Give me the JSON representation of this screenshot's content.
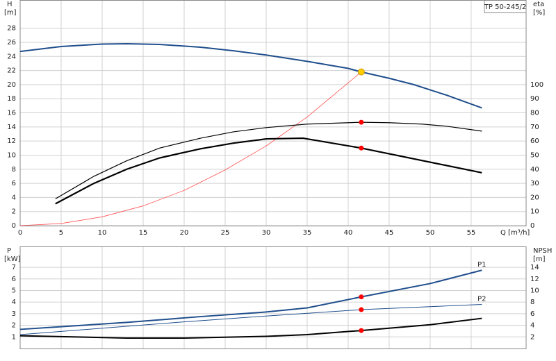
{
  "chart_data": [
    {
      "type": "line",
      "label": "TP 50-245/2",
      "y_label": "H",
      "y_unit": "[m]",
      "y2_label": "eta",
      "y2_unit": "[%]",
      "x_label": "Q [m³/h]",
      "xlim": [
        0,
        61.7
      ],
      "xticks": [
        0,
        5,
        10,
        15,
        20,
        25,
        30,
        35,
        40,
        45,
        50,
        55
      ],
      "ylim": [
        0,
        32
      ],
      "yticks": [
        0,
        2,
        4,
        6,
        8,
        10,
        12,
        14,
        16,
        18,
        20,
        22,
        24,
        26,
        28
      ],
      "y2lim": [
        0,
        160
      ],
      "y2ticks": [
        0,
        10,
        20,
        30,
        40,
        50,
        60,
        70,
        80,
        90,
        100
      ],
      "grid": true,
      "series": [
        {
          "color": "#1f4e8c",
          "width": 2,
          "x": [
            0,
            5,
            10,
            13,
            17,
            22,
            26,
            30,
            35,
            40,
            41.6,
            45,
            48,
            52,
            56.3
          ],
          "values": [
            24.7,
            25.4,
            25.75,
            25.8,
            25.7,
            25.3,
            24.8,
            24.2,
            23.3,
            22.3,
            21.8,
            20.9,
            20.0,
            18.5,
            16.7
          ]
        },
        {
          "color": "#ff5050",
          "width": 0.8,
          "x": [
            0,
            5,
            10,
            15,
            20,
            25,
            30,
            35,
            41.6
          ],
          "values": [
            0,
            0.3,
            1.25,
            2.8,
            5.0,
            7.9,
            11.3,
            15.4,
            21.8
          ]
        },
        {
          "color": "#000000",
          "width": 1.2,
          "axis": "y2",
          "x": [
            4.3,
            9,
            13,
            17,
            22,
            26,
            30,
            35,
            41.6,
            45,
            49,
            52,
            56.3
          ],
          "values": [
            19,
            35,
            46,
            55,
            62,
            66.5,
            69.5,
            72,
            73.3,
            73,
            72,
            70.5,
            67
          ]
        },
        {
          "color": "#000000",
          "width": 2.2,
          "axis": "y2",
          "x": [
            4.3,
            9,
            13,
            17,
            22,
            26,
            30,
            34.5,
            41.6,
            56.3
          ],
          "values": [
            15.5,
            30,
            40,
            48,
            54.5,
            58.5,
            61.5,
            62,
            55,
            37.5
          ]
        }
      ],
      "points": [
        {
          "x": 41.6,
          "y": 21.8,
          "color": "#ffcc00"
        },
        {
          "x": 41.6,
          "y": 73.3,
          "color": "#ff0000",
          "axis": "y2"
        },
        {
          "x": 41.6,
          "y": 55,
          "color": "#ff0000",
          "axis": "y2"
        }
      ]
    },
    {
      "type": "line",
      "y_label": "P",
      "y_unit": "[kW]",
      "y2_label": "NPSH",
      "y2_unit": "[m]",
      "xlim": [
        0,
        61.7
      ],
      "ylim": [
        0,
        8.8
      ],
      "yticks": [
        1,
        2,
        3,
        4,
        5,
        6,
        7
      ],
      "y2lim": [
        0,
        17.6
      ],
      "y2ticks": [
        2,
        4,
        6,
        8,
        10,
        12,
        14
      ],
      "grid": true,
      "series": [
        {
          "name": "P1",
          "color": "#1f4e8c",
          "width": 2,
          "x": [
            0,
            4.3,
            13,
            22,
            30,
            35,
            41.6,
            50,
            56.3
          ],
          "values": [
            1.65,
            1.85,
            2.25,
            2.75,
            3.15,
            3.5,
            4.45,
            5.6,
            6.75
          ]
        },
        {
          "name": "P2",
          "color": "#1f4e8c",
          "width": 1,
          "x": [
            0,
            10,
            20,
            30,
            41.6,
            56.3
          ],
          "values": [
            1.2,
            1.75,
            2.3,
            2.8,
            3.35,
            3.8
          ]
        },
        {
          "color": "#000000",
          "width": 2,
          "axis": "y2",
          "x": [
            0,
            13,
            20,
            30,
            35,
            41.6,
            50,
            56.3
          ],
          "values": [
            2.2,
            1.8,
            1.8,
            2.1,
            2.4,
            3.1,
            4.1,
            5.2
          ]
        }
      ],
      "points": [
        {
          "x": 41.6,
          "y": 4.45,
          "color": "#ff0000"
        },
        {
          "x": 41.6,
          "y": 3.35,
          "color": "#ff0000"
        },
        {
          "x": 41.6,
          "y": 3.1,
          "color": "#ff0000",
          "axis": "y2"
        }
      ]
    }
  ]
}
